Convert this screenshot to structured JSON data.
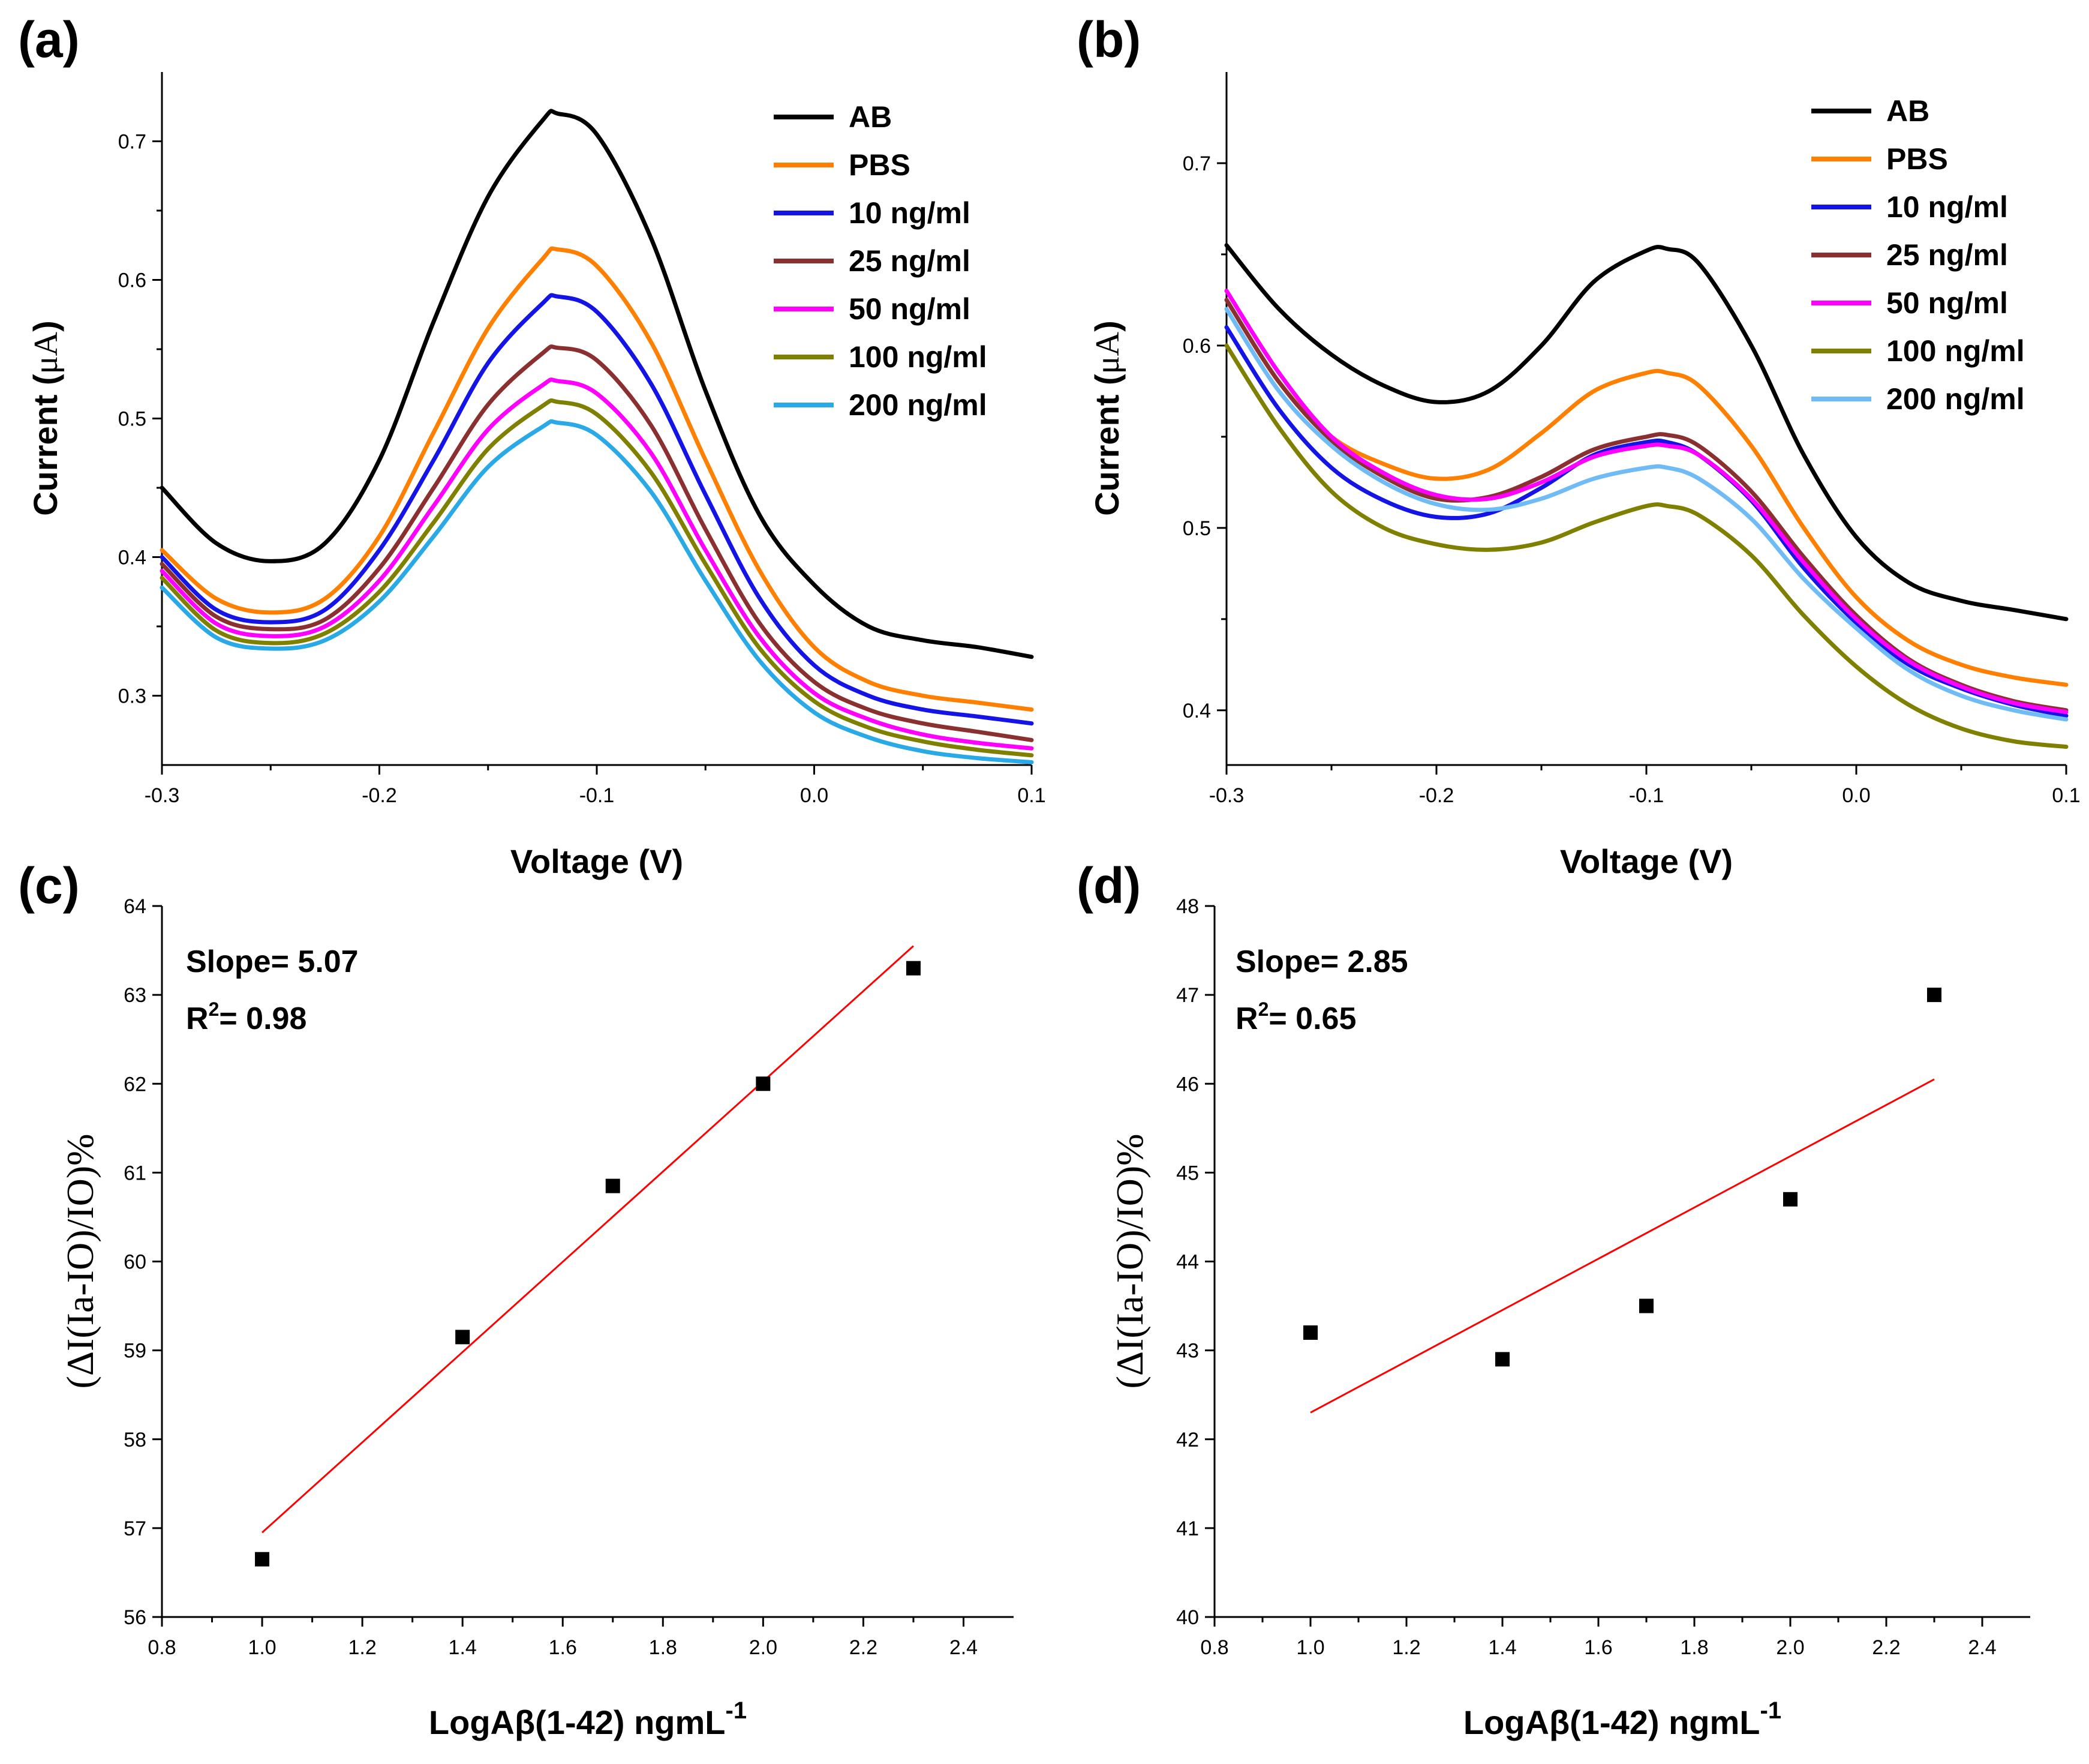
{
  "chart_data": [
    {
      "id": "a",
      "panel_label": "(a)",
      "type": "line",
      "xlabel": "Voltage (V)",
      "ylabel_prefix": "Current (",
      "ylabel_unit": "μA",
      "ylabel_suffix": ")",
      "xlim": [
        -0.3,
        0.1
      ],
      "ylim": [
        0.25,
        0.75
      ],
      "xticks": [
        -0.3,
        -0.2,
        -0.1,
        0.0,
        0.1
      ],
      "xtick_labels": [
        "-0.3",
        "-0.2",
        "-0.1",
        "0.0",
        "0.1"
      ],
      "yticks": [
        0.3,
        0.4,
        0.5,
        0.6,
        0.7
      ],
      "ytick_labels": [
        "0.3",
        "0.4",
        "0.5",
        "0.6",
        "0.7"
      ],
      "legend_position": "top-right",
      "series": [
        {
          "name": "AB",
          "color": "#000000",
          "x": [
            -0.3,
            -0.275,
            -0.25,
            -0.225,
            -0.2,
            -0.175,
            -0.15,
            -0.125,
            -0.118,
            -0.1,
            -0.075,
            -0.05,
            -0.025,
            0.0,
            0.025,
            0.05,
            0.075,
            0.1
          ],
          "values": [
            0.45,
            0.41,
            0.397,
            0.41,
            0.47,
            0.57,
            0.66,
            0.715,
            0.72,
            0.705,
            0.63,
            0.52,
            0.43,
            0.38,
            0.35,
            0.34,
            0.335,
            0.328
          ]
        },
        {
          "name": "PBS",
          "color": "#ff7f00",
          "x": [
            -0.3,
            -0.275,
            -0.25,
            -0.225,
            -0.2,
            -0.175,
            -0.15,
            -0.125,
            -0.118,
            -0.1,
            -0.075,
            -0.05,
            -0.025,
            0.0,
            0.025,
            0.05,
            0.075,
            0.1
          ],
          "values": [
            0.405,
            0.37,
            0.36,
            0.37,
            0.415,
            0.49,
            0.565,
            0.615,
            0.622,
            0.61,
            0.555,
            0.47,
            0.39,
            0.335,
            0.31,
            0.3,
            0.295,
            0.29
          ]
        },
        {
          "name": "10 ng/ml",
          "color": "#1414e6",
          "x": [
            -0.3,
            -0.275,
            -0.25,
            -0.225,
            -0.2,
            -0.175,
            -0.15,
            -0.125,
            -0.118,
            -0.1,
            -0.075,
            -0.05,
            -0.025,
            0.0,
            0.025,
            0.05,
            0.075,
            0.1
          ],
          "values": [
            0.4,
            0.362,
            0.353,
            0.362,
            0.405,
            0.47,
            0.54,
            0.583,
            0.588,
            0.577,
            0.525,
            0.445,
            0.37,
            0.322,
            0.3,
            0.29,
            0.285,
            0.28
          ]
        },
        {
          "name": "25 ng/ml",
          "color": "#8b3030",
          "x": [
            -0.3,
            -0.275,
            -0.25,
            -0.225,
            -0.2,
            -0.175,
            -0.15,
            -0.125,
            -0.118,
            -0.1,
            -0.075,
            -0.05,
            -0.025,
            0.0,
            0.025,
            0.05,
            0.075,
            0.1
          ],
          "values": [
            0.395,
            0.357,
            0.348,
            0.355,
            0.392,
            0.45,
            0.51,
            0.547,
            0.551,
            0.542,
            0.495,
            0.42,
            0.352,
            0.31,
            0.29,
            0.28,
            0.274,
            0.268
          ]
        },
        {
          "name": "50 ng/ml",
          "color": "#ff00ff",
          "x": [
            -0.3,
            -0.275,
            -0.25,
            -0.225,
            -0.2,
            -0.175,
            -0.15,
            -0.125,
            -0.118,
            -0.1,
            -0.075,
            -0.05,
            -0.025,
            0.0,
            0.025,
            0.05,
            0.075,
            0.1
          ],
          "values": [
            0.39,
            0.352,
            0.343,
            0.35,
            0.383,
            0.437,
            0.492,
            0.524,
            0.527,
            0.518,
            0.475,
            0.405,
            0.342,
            0.302,
            0.283,
            0.272,
            0.266,
            0.262
          ]
        },
        {
          "name": "100 ng/ml",
          "color": "#808000",
          "x": [
            -0.3,
            -0.275,
            -0.25,
            -0.225,
            -0.2,
            -0.175,
            -0.15,
            -0.125,
            -0.118,
            -0.1,
            -0.075,
            -0.05,
            -0.025,
            0.0,
            0.025,
            0.05,
            0.075,
            0.1
          ],
          "values": [
            0.385,
            0.347,
            0.338,
            0.345,
            0.375,
            0.425,
            0.478,
            0.509,
            0.512,
            0.503,
            0.461,
            0.395,
            0.334,
            0.296,
            0.277,
            0.267,
            0.261,
            0.257
          ]
        },
        {
          "name": "200 ng/ml",
          "color": "#29a9e6",
          "x": [
            -0.3,
            -0.275,
            -0.25,
            -0.225,
            -0.2,
            -0.175,
            -0.15,
            -0.125,
            -0.118,
            -0.1,
            -0.075,
            -0.05,
            -0.025,
            0.0,
            0.025,
            0.05,
            0.075,
            0.1
          ],
          "values": [
            0.378,
            0.342,
            0.334,
            0.34,
            0.368,
            0.415,
            0.465,
            0.494,
            0.497,
            0.488,
            0.447,
            0.383,
            0.325,
            0.288,
            0.27,
            0.26,
            0.255,
            0.252
          ]
        }
      ]
    },
    {
      "id": "b",
      "panel_label": "(b)",
      "type": "line",
      "xlabel": "Voltage (V)",
      "ylabel_prefix": "Current (",
      "ylabel_unit": "μA",
      "ylabel_suffix": ")",
      "xlim": [
        -0.3,
        0.1
      ],
      "ylim": [
        0.37,
        0.75
      ],
      "xticks": [
        -0.3,
        -0.2,
        -0.1,
        0.0,
        0.1
      ],
      "xtick_labels": [
        "-0.3",
        "-0.2",
        "-0.1",
        "0.0",
        "0.1"
      ],
      "yticks": [
        0.4,
        0.5,
        0.6,
        0.7
      ],
      "ytick_labels": [
        "0.4",
        "0.5",
        "0.6",
        "0.7"
      ],
      "legend_position": "top-right",
      "series": [
        {
          "name": "AB",
          "color": "#000000",
          "x": [
            -0.3,
            -0.275,
            -0.25,
            -0.225,
            -0.2,
            -0.175,
            -0.15,
            -0.125,
            -0.1,
            -0.09,
            -0.075,
            -0.05,
            -0.025,
            0.0,
            0.025,
            0.05,
            0.075,
            0.1
          ],
          "values": [
            0.655,
            0.62,
            0.595,
            0.578,
            0.569,
            0.575,
            0.6,
            0.635,
            0.652,
            0.653,
            0.645,
            0.6,
            0.54,
            0.495,
            0.47,
            0.46,
            0.455,
            0.45
          ]
        },
        {
          "name": "PBS",
          "color": "#ff7f00",
          "x": [
            -0.3,
            -0.275,
            -0.25,
            -0.225,
            -0.2,
            -0.175,
            -0.15,
            -0.125,
            -0.1,
            -0.09,
            -0.075,
            -0.05,
            -0.025,
            0.0,
            0.025,
            0.05,
            0.075,
            0.1
          ],
          "values": [
            0.625,
            0.58,
            0.55,
            0.535,
            0.527,
            0.532,
            0.552,
            0.575,
            0.585,
            0.585,
            0.578,
            0.545,
            0.5,
            0.462,
            0.438,
            0.425,
            0.418,
            0.414
          ]
        },
        {
          "name": "10 ng/ml",
          "color": "#1414e6",
          "x": [
            -0.3,
            -0.275,
            -0.25,
            -0.225,
            -0.2,
            -0.175,
            -0.15,
            -0.125,
            -0.1,
            -0.09,
            -0.075,
            -0.05,
            -0.025,
            0.0,
            0.025,
            0.05,
            0.075,
            0.1
          ],
          "values": [
            0.61,
            0.565,
            0.533,
            0.515,
            0.506,
            0.508,
            0.522,
            0.54,
            0.547,
            0.547,
            0.54,
            0.515,
            0.478,
            0.448,
            0.425,
            0.412,
            0.403,
            0.397
          ]
        },
        {
          "name": "25 ng/ml",
          "color": "#8b3030",
          "x": [
            -0.3,
            -0.275,
            -0.25,
            -0.225,
            -0.2,
            -0.175,
            -0.15,
            -0.125,
            -0.1,
            -0.09,
            -0.075,
            -0.05,
            -0.025,
            0.0,
            0.025,
            0.05,
            0.075,
            0.1
          ],
          "values": [
            0.625,
            0.58,
            0.548,
            0.528,
            0.516,
            0.517,
            0.528,
            0.543,
            0.55,
            0.551,
            0.545,
            0.52,
            0.484,
            0.452,
            0.428,
            0.414,
            0.405,
            0.4
          ]
        },
        {
          "name": "50 ng/ml",
          "color": "#ff00ff",
          "x": [
            -0.3,
            -0.275,
            -0.25,
            -0.225,
            -0.2,
            -0.175,
            -0.15,
            -0.125,
            -0.1,
            -0.09,
            -0.075,
            -0.05,
            -0.025,
            0.0,
            0.025,
            0.05,
            0.075,
            0.1
          ],
          "values": [
            0.63,
            0.585,
            0.55,
            0.53,
            0.518,
            0.516,
            0.525,
            0.539,
            0.545,
            0.545,
            0.54,
            0.516,
            0.481,
            0.45,
            0.427,
            0.413,
            0.404,
            0.399
          ]
        },
        {
          "name": "100 ng/ml",
          "color": "#808000",
          "x": [
            -0.3,
            -0.275,
            -0.25,
            -0.225,
            -0.2,
            -0.175,
            -0.15,
            -0.125,
            -0.1,
            -0.09,
            -0.075,
            -0.05,
            -0.025,
            0.0,
            0.025,
            0.05,
            0.075,
            0.1
          ],
          "values": [
            0.6,
            0.555,
            0.52,
            0.5,
            0.491,
            0.488,
            0.492,
            0.503,
            0.512,
            0.512,
            0.507,
            0.485,
            0.452,
            0.424,
            0.403,
            0.39,
            0.383,
            0.38
          ]
        },
        {
          "name": "200 ng/ml",
          "color": "#6fbbf5",
          "x": [
            -0.3,
            -0.275,
            -0.25,
            -0.225,
            -0.2,
            -0.175,
            -0.15,
            -0.125,
            -0.1,
            -0.09,
            -0.075,
            -0.05,
            -0.025,
            0.0,
            0.025,
            0.05,
            0.075,
            0.1
          ],
          "values": [
            0.62,
            0.575,
            0.545,
            0.525,
            0.513,
            0.51,
            0.516,
            0.527,
            0.533,
            0.533,
            0.527,
            0.505,
            0.472,
            0.445,
            0.422,
            0.408,
            0.4,
            0.395
          ]
        }
      ]
    },
    {
      "id": "c",
      "panel_label": "(c)",
      "type": "scatter",
      "xlabel_main": "LogAβ(1-42) ngmL",
      "xlabel_sup": "-1",
      "ylabel": "(ΔI(Ia-IO)/IO)%",
      "xlim": [
        0.8,
        2.5
      ],
      "ylim": [
        56,
        64
      ],
      "xticks": [
        0.8,
        1.0,
        1.2,
        1.4,
        1.6,
        1.8,
        2.0,
        2.2,
        2.4
      ],
      "xtick_labels": [
        "0.8",
        "1.0",
        "1.2",
        "1.4",
        "1.6",
        "1.8",
        "2.0",
        "2.2",
        "2.4"
      ],
      "yticks": [
        56,
        57,
        58,
        59,
        60,
        61,
        62,
        63,
        64
      ],
      "ytick_labels": [
        "56",
        "57",
        "58",
        "59",
        "60",
        "61",
        "62",
        "63",
        "64"
      ],
      "slope_text": "Slope= 5.07",
      "r2_prefix": "R",
      "r2_sup": "2",
      "r2_value": "= 0.98",
      "points": {
        "x": [
          1.0,
          1.4,
          1.7,
          2.0,
          2.3
        ],
        "y": [
          56.65,
          59.15,
          60.85,
          62.0,
          63.3
        ]
      },
      "fit": {
        "x": [
          1.0,
          2.3
        ],
        "y": [
          56.95,
          63.55
        ],
        "color": "#ff0000"
      }
    },
    {
      "id": "d",
      "panel_label": "(d)",
      "type": "scatter",
      "xlabel_main": "LogAβ(1-42) ngmL",
      "xlabel_sup": "-1",
      "ylabel": "(ΔI(Ia-IO)/IO)%",
      "xlim": [
        0.8,
        2.5
      ],
      "ylim": [
        40,
        48
      ],
      "xticks": [
        0.8,
        1.0,
        1.2,
        1.4,
        1.6,
        1.8,
        2.0,
        2.2,
        2.4
      ],
      "xtick_labels": [
        "0.8",
        "1.0",
        "1.2",
        "1.4",
        "1.6",
        "1.8",
        "2.0",
        "2.2",
        "2.4"
      ],
      "yticks": [
        40,
        41,
        42,
        43,
        44,
        45,
        46,
        47,
        48
      ],
      "ytick_labels": [
        "40",
        "41",
        "42",
        "43",
        "44",
        "45",
        "46",
        "47",
        "48"
      ],
      "slope_text": "Slope= 2.85",
      "r2_prefix": "R",
      "r2_sup": "2",
      "r2_value": "= 0.65",
      "points": {
        "x": [
          1.0,
          1.4,
          1.7,
          2.0,
          2.3
        ],
        "y": [
          43.2,
          42.9,
          43.5,
          44.7,
          47.0
        ]
      },
      "fit": {
        "x": [
          1.0,
          2.3
        ],
        "y": [
          42.3,
          46.05
        ],
        "color": "#ff0000"
      }
    }
  ]
}
